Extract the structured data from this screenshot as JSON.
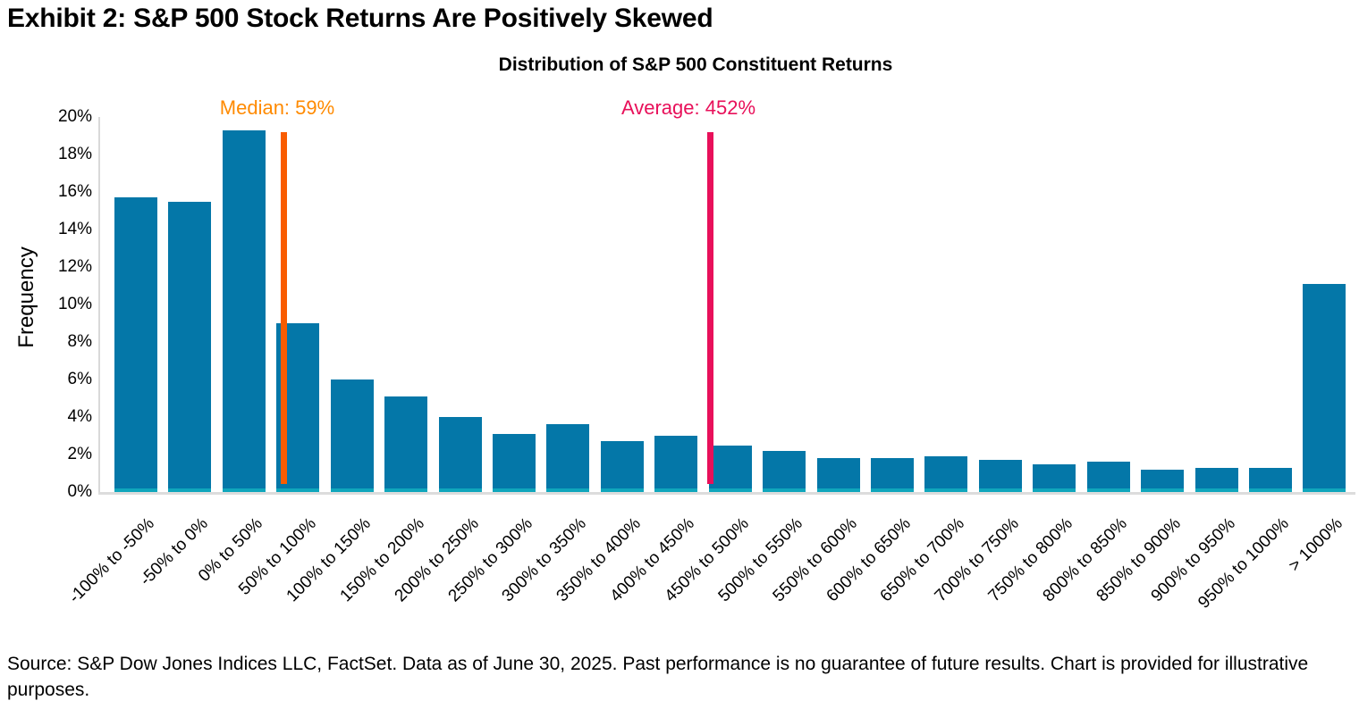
{
  "page": {
    "title": "Exhibit 2: S&P 500 Stock Returns Are Positively Skewed"
  },
  "chart_data": {
    "type": "bar",
    "title": "Distribution of S&P 500 Constituent Returns",
    "xlabel": "",
    "ylabel": "Frequency",
    "ylim": [
      0,
      20
    ],
    "ytick_step": 2,
    "ytick_suffix": "%",
    "grid": false,
    "legend": "none",
    "categories": [
      "-100% to -50%",
      "-50% to 0%",
      "0% to 50%",
      "50% to 100%",
      "100% to 150%",
      "150% to 200%",
      "200% to 250%",
      "250% to 300%",
      "300% to 350%",
      "350% to 400%",
      "400% to 450%",
      "450% to 500%",
      "500% to 550%",
      "550% to 600%",
      "600% to 650%",
      "650% to 700%",
      "700% to 750%",
      "750% to 800%",
      "800% to 850%",
      "850% to 900%",
      "900% to 950%",
      "950% to 1000%",
      "> 1000%"
    ],
    "values": [
      15.7,
      15.5,
      19.3,
      9.0,
      6.0,
      5.1,
      4.0,
      3.1,
      3.6,
      2.7,
      3.0,
      2.5,
      2.2,
      1.8,
      1.8,
      1.9,
      1.7,
      1.5,
      1.6,
      1.2,
      1.3,
      1.3,
      11.1
    ],
    "bar_color": "#0477A8",
    "bar_base_color": "#0FA6BC",
    "axis_color": "#D9D9D9",
    "bins": {
      "start": -100,
      "width": 50
    },
    "annotations": [
      {
        "name": "median",
        "label": "Median: 59%",
        "value": 59,
        "line_color": "#F95C00",
        "text_color": "#FF8A00"
      },
      {
        "name": "average",
        "label": "Average: 452%",
        "value": 452,
        "line_color": "#E8105A",
        "text_color": "#E8105A"
      }
    ]
  },
  "footer": {
    "text": "Source: S&P Dow Jones Indices LLC, FactSet. Data as of June 30, 2025. Past performance is no guarantee of future results. Chart is provided for illustrative purposes."
  }
}
